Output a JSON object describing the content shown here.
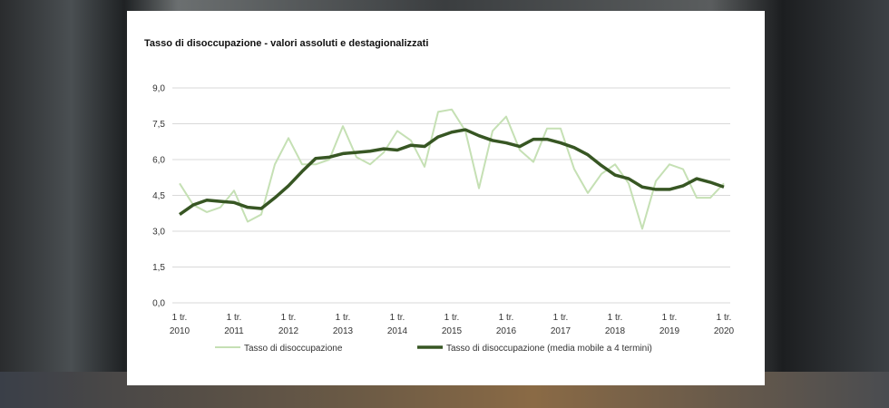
{
  "chart_data": {
    "type": "line",
    "title": "Tasso di disoccupazione - valori assoluti e destagionalizzati",
    "xlabel": "",
    "ylabel": "",
    "ylim": [
      0,
      9.0
    ],
    "yticks": [
      "0,0",
      "1,5",
      "3,0",
      "4,5",
      "6,0",
      "7,5",
      "9,0"
    ],
    "grid": true,
    "legend_position": "bottom",
    "xtick_labels": [
      {
        "q": "1 tr.",
        "y": "2010"
      },
      {
        "q": "1 tr.",
        "y": "2011"
      },
      {
        "q": "1 tr.",
        "y": "2012"
      },
      {
        "q": "1 tr.",
        "y": "2013"
      },
      {
        "q": "1 tr.",
        "y": "2014"
      },
      {
        "q": "1 tr.",
        "y": "2015"
      },
      {
        "q": "1 tr.",
        "y": "2016"
      },
      {
        "q": "1 tr.",
        "y": "2017"
      },
      {
        "q": "1 tr.",
        "y": "2018"
      },
      {
        "q": "1 tr.",
        "y": "2019"
      },
      {
        "q": "1 tr.",
        "y": "2020"
      }
    ],
    "series": [
      {
        "name": "Tasso di disoccupazione",
        "color": "#c5e0b4",
        "values": [
          5.0,
          4.1,
          3.8,
          4.0,
          4.7,
          3.4,
          3.7,
          5.8,
          6.9,
          5.8,
          5.8,
          6.0,
          7.4,
          6.1,
          5.8,
          6.3,
          7.2,
          6.8,
          5.7,
          8.0,
          8.1,
          7.2,
          4.8,
          7.2,
          7.8,
          6.4,
          5.9,
          7.3,
          7.3,
          5.6,
          4.6,
          5.4,
          5.8,
          5.0,
          3.1,
          5.1,
          5.8,
          5.6,
          4.4,
          4.4,
          5.0
        ]
      },
      {
        "name": "Tasso di disoccupazione (media mobile a 4 termini)",
        "color": "#375623",
        "values": [
          3.7,
          4.1,
          4.3,
          4.25,
          4.2,
          4.0,
          3.95,
          4.4,
          4.9,
          5.5,
          6.05,
          6.1,
          6.25,
          6.3,
          6.35,
          6.45,
          6.4,
          6.6,
          6.55,
          6.95,
          7.15,
          7.25,
          7.0,
          6.8,
          6.7,
          6.55,
          6.85,
          6.85,
          6.7,
          6.5,
          6.2,
          5.75,
          5.35,
          5.2,
          4.85,
          4.75,
          4.75,
          4.9,
          5.2,
          5.05,
          4.85
        ]
      }
    ]
  }
}
